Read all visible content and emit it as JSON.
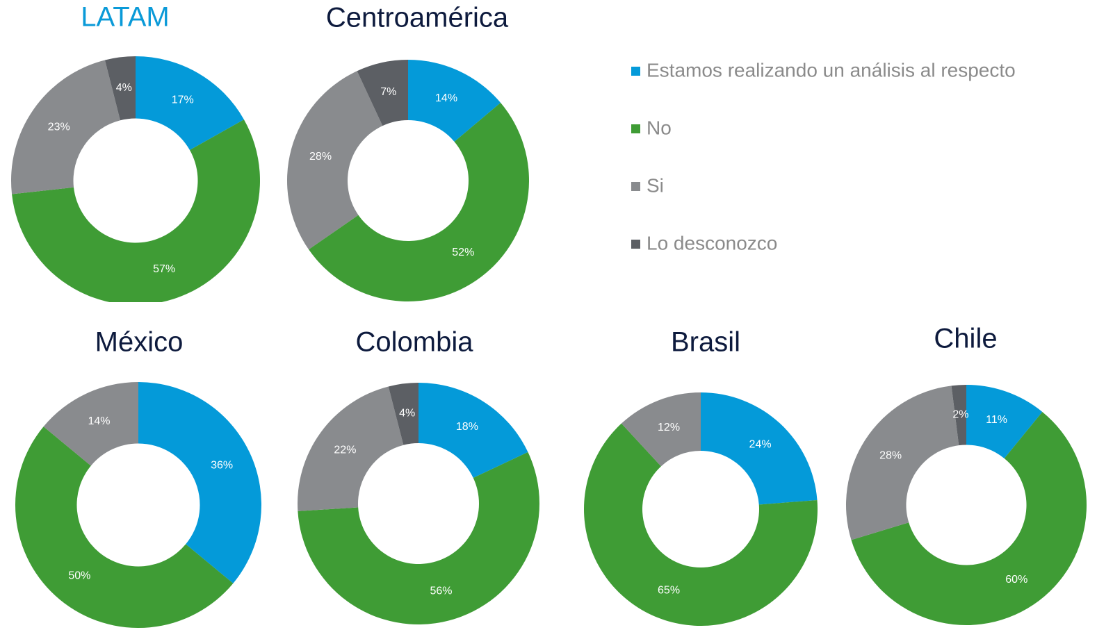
{
  "legend_position": "right",
  "chart_data": [
    {
      "type": "donut",
      "title": "LATAM",
      "title_color": "#0a9ad8",
      "categories": [
        "Estamos realizando un análisis al respecto",
        "No",
        "Si",
        "Lo desconozco"
      ],
      "colors": [
        "#049ad9",
        "#3f9c35",
        "#898b8e",
        "#5c5f64"
      ],
      "values": [
        17,
        57,
        23,
        4
      ],
      "value_labels": [
        "17%",
        "57%",
        "23%",
        "4%"
      ]
    },
    {
      "type": "donut",
      "title": "Centroamérica",
      "title_color": "#0d1a3d",
      "categories": [
        "Estamos realizando un análisis al respecto",
        "No",
        "Si",
        "Lo desconozco"
      ],
      "colors": [
        "#049ad9",
        "#3f9c35",
        "#898b8e",
        "#5c5f64"
      ],
      "values": [
        14,
        52,
        28,
        7
      ],
      "value_labels": [
        "14%",
        "52%",
        "28%",
        "7%"
      ]
    },
    {
      "type": "donut",
      "title": "México",
      "title_color": "#0d1a3d",
      "categories": [
        "Estamos realizando un análisis al respecto",
        "No",
        "Si"
      ],
      "colors": [
        "#049ad9",
        "#3f9c35",
        "#898b8e"
      ],
      "values": [
        36,
        50,
        14
      ],
      "value_labels": [
        "36%",
        "50%",
        "14%"
      ]
    },
    {
      "type": "donut",
      "title": "Colombia",
      "title_color": "#0d1a3d",
      "categories": [
        "Estamos realizando un análisis al respecto",
        "No",
        "Si",
        "Lo desconozco"
      ],
      "colors": [
        "#049ad9",
        "#3f9c35",
        "#898b8e",
        "#5c5f64"
      ],
      "values": [
        18,
        56,
        22,
        4
      ],
      "value_labels": [
        "18%",
        "56%",
        "22%",
        "4%"
      ]
    },
    {
      "type": "donut",
      "title": "Brasil",
      "title_color": "#0d1a3d",
      "categories": [
        "Estamos realizando un análisis al respecto",
        "No",
        "Si"
      ],
      "colors": [
        "#049ad9",
        "#3f9c35",
        "#898b8e"
      ],
      "values": [
        24,
        65,
        12
      ],
      "value_labels": [
        "24%",
        "65%",
        "12%"
      ]
    },
    {
      "type": "donut",
      "title": "Chile",
      "title_color": "#0d1a3d",
      "categories": [
        "Estamos realizando un análisis al respecto",
        "No",
        "Si",
        "Lo desconozco"
      ],
      "colors": [
        "#049ad9",
        "#3f9c35",
        "#898b8e",
        "#5c5f64"
      ],
      "values": [
        11,
        60,
        28,
        2
      ],
      "value_labels": [
        "11%",
        "60%",
        "28%",
        "2%"
      ]
    }
  ]
}
